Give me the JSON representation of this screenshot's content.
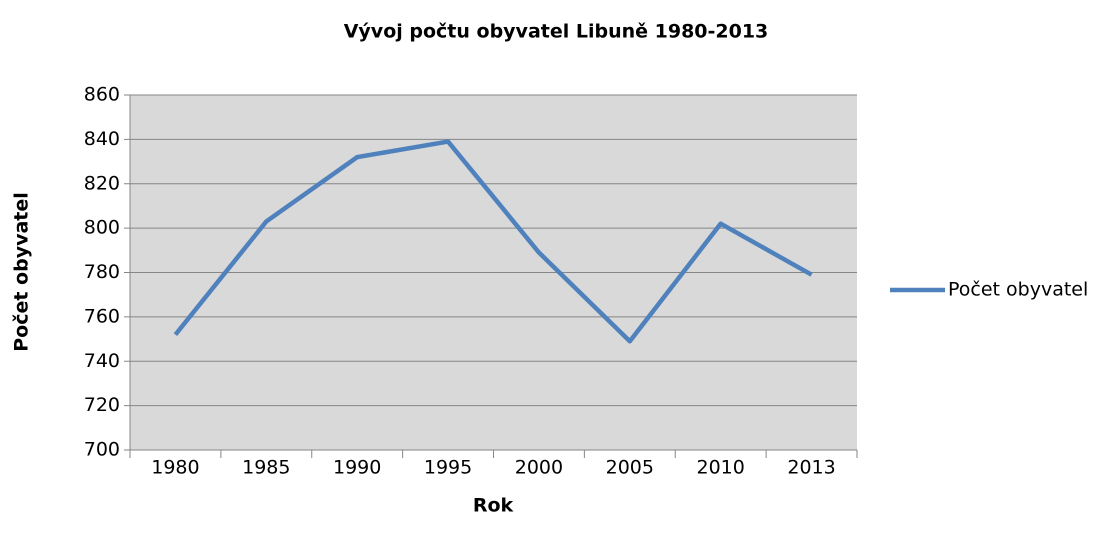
{
  "chart_data": {
    "type": "line",
    "title": "Vývoj počtu obyvatel Libuně 1980-2013",
    "x_label": "Rok",
    "y_label": "Počet obyvatel",
    "categories": [
      "1980",
      "1985",
      "1990",
      "1995",
      "2000",
      "2005",
      "2010",
      "2013"
    ],
    "series": [
      {
        "name": "Počet obyvatel",
        "color": "#4f81bd",
        "values": [
          752,
          803,
          832,
          839,
          789,
          749,
          802,
          779
        ]
      }
    ],
    "ylim": [
      700,
      860
    ],
    "yticks": [
      700,
      720,
      740,
      760,
      780,
      800,
      820,
      840,
      860
    ],
    "grid": true,
    "legend": "right"
  }
}
